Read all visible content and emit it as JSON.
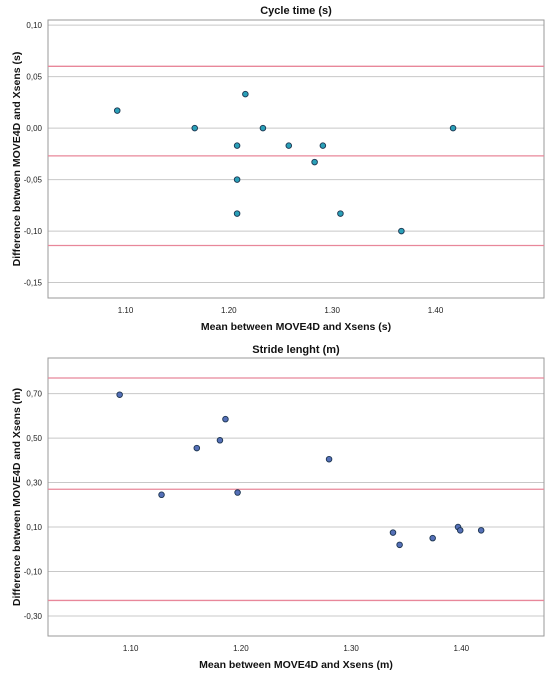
{
  "chart_data": [
    {
      "type": "scatter",
      "title": "Cycle time (s)",
      "xlabel": "Mean between MOVE4D and Xsens (s)",
      "ylabel": "Difference between MOVE4D and Xsens (s)",
      "xlim": [
        1.025,
        1.505
      ],
      "ylim": [
        -0.165,
        0.105
      ],
      "xticks": [
        1.1,
        1.2,
        1.3,
        1.4
      ],
      "xtick_labels": [
        "1.10",
        "1.20",
        "1.30",
        "1.40"
      ],
      "yticks": [
        0.1,
        0.05,
        0.0,
        -0.05,
        -0.1,
        -0.15
      ],
      "ytick_labels": [
        "0,10",
        "0,05",
        "0,00",
        "-0,05",
        "-0,10",
        "-0,15"
      ],
      "grid": true,
      "reference_lines": [
        0.06,
        -0.027,
        -0.114
      ],
      "reference_color": "#e8879a",
      "point_color": "#2aa0b8",
      "x": [
        1.092,
        1.167,
        1.208,
        1.208,
        1.208,
        1.216,
        1.233,
        1.258,
        1.283,
        1.291,
        1.308,
        1.367,
        1.417
      ],
      "y": [
        0.017,
        0.0,
        -0.017,
        -0.05,
        -0.083,
        0.033,
        0.0,
        -0.017,
        -0.033,
        -0.017,
        -0.083,
        -0.1,
        0.0
      ]
    },
    {
      "type": "scatter",
      "title": "Stride lenght (m)",
      "xlabel": "Mean between MOVE4D and Xsens (m)",
      "ylabel": "Difference between MOVE4D and Xsens (m)",
      "xlim": [
        1.025,
        1.475
      ],
      "ylim": [
        -0.39,
        0.86
      ],
      "xticks": [
        1.1,
        1.2,
        1.3,
        1.4
      ],
      "xtick_labels": [
        "1.10",
        "1.20",
        "1.30",
        "1.40"
      ],
      "yticks": [
        0.7,
        0.5,
        0.3,
        0.1,
        -0.1,
        -0.3
      ],
      "ytick_labels": [
        "0,70",
        "0,50",
        "0,30",
        "0,10",
        "-0,10",
        "-0,30"
      ],
      "grid": true,
      "reference_lines": [
        0.77,
        0.27,
        -0.23
      ],
      "reference_color": "#e8879a",
      "point_color": "#5570b8",
      "x": [
        1.09,
        1.128,
        1.16,
        1.181,
        1.186,
        1.197,
        1.28,
        1.338,
        1.344,
        1.374,
        1.397,
        1.399,
        1.418
      ],
      "y": [
        0.695,
        0.245,
        0.455,
        0.49,
        0.585,
        0.255,
        0.405,
        0.075,
        0.02,
        0.05,
        0.1,
        0.085,
        0.085
      ]
    }
  ]
}
